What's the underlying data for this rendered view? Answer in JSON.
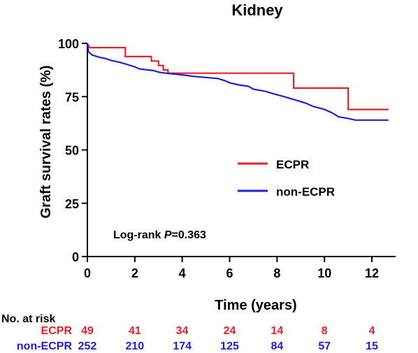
{
  "chart_data": {
    "type": "line",
    "title": "Kidney",
    "xlabel": "Time (years)",
    "ylabel": "Graft survival rates (%)",
    "xlim": [
      0,
      13
    ],
    "ylim": [
      0,
      100
    ],
    "x_ticks": [
      0,
      2,
      4,
      6,
      8,
      10,
      12
    ],
    "y_ticks": [
      0,
      25,
      50,
      75,
      100
    ],
    "legend_position": "center-right",
    "annotation": {
      "prefix": "Log-rank ",
      "italic": "P",
      "suffix": "=0.363"
    },
    "series": [
      {
        "name": "ECPR",
        "color": "#e8202a",
        "points": [
          [
            0,
            100
          ],
          [
            0.1,
            98
          ],
          [
            1.6,
            98
          ],
          [
            1.6,
            93.8
          ],
          [
            2.7,
            93.8
          ],
          [
            2.7,
            91.7
          ],
          [
            3.0,
            91.7
          ],
          [
            3.0,
            89.6
          ],
          [
            3.2,
            89.6
          ],
          [
            3.2,
            87.5
          ],
          [
            3.4,
            87.5
          ],
          [
            3.4,
            86
          ],
          [
            8.7,
            86
          ],
          [
            8.7,
            79
          ],
          [
            11.0,
            79
          ],
          [
            11.0,
            69
          ],
          [
            12.7,
            69
          ]
        ]
      },
      {
        "name": "non-ECPR",
        "color": "#1f1fd6",
        "points": [
          [
            0,
            100
          ],
          [
            0.05,
            96
          ],
          [
            0.2,
            94.5
          ],
          [
            0.5,
            93.5
          ],
          [
            0.8,
            92.8
          ],
          [
            1.0,
            92
          ],
          [
            1.4,
            91
          ],
          [
            1.7,
            90
          ],
          [
            2.0,
            89
          ],
          [
            2.2,
            88
          ],
          [
            2.8,
            87.2
          ],
          [
            3.0,
            86.5
          ],
          [
            3.3,
            86
          ],
          [
            4.0,
            85.2
          ],
          [
            4.5,
            84.5
          ],
          [
            5.0,
            84
          ],
          [
            5.5,
            83.5
          ],
          [
            5.8,
            82.5
          ],
          [
            6.0,
            81.5
          ],
          [
            6.4,
            80.5
          ],
          [
            6.8,
            79.8
          ],
          [
            7.0,
            78.5
          ],
          [
            7.5,
            77.5
          ],
          [
            7.8,
            76.5
          ],
          [
            8.3,
            75
          ],
          [
            8.6,
            74
          ],
          [
            8.9,
            73
          ],
          [
            9.2,
            72
          ],
          [
            9.5,
            70.5
          ],
          [
            10.0,
            69
          ],
          [
            10.3,
            67.5
          ],
          [
            10.6,
            65.5
          ],
          [
            11.0,
            64.8
          ],
          [
            11.3,
            64
          ],
          [
            12.7,
            64
          ]
        ]
      }
    ],
    "risk_table": {
      "title": "No. at risk",
      "times": [
        0,
        2,
        4,
        6,
        8,
        10,
        12
      ],
      "rows": [
        {
          "label": "ECPR",
          "color": "#e8202a",
          "values": [
            49,
            41,
            34,
            24,
            14,
            8,
            4
          ]
        },
        {
          "label": "non-ECPR",
          "color": "#1f1fd6",
          "values": [
            252,
            210,
            174,
            125,
            84,
            57,
            15
          ]
        }
      ]
    }
  }
}
